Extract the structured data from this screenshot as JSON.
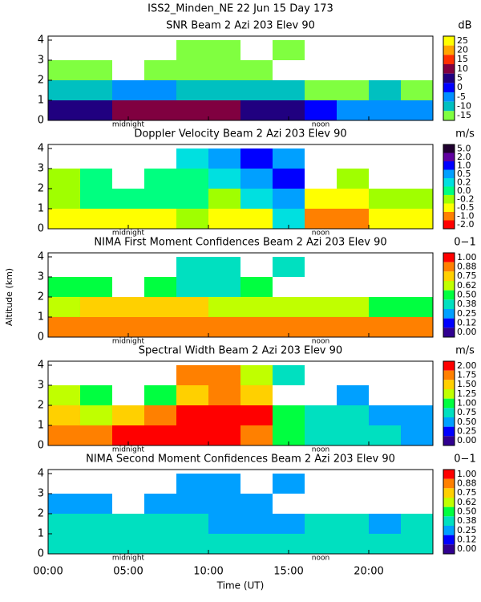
{
  "page_title": "ISS2_Minden_NE  22 Jun 15 Day 173",
  "y_label": "Altitude (km)",
  "chart_data": [
    {
      "type": "heatmap",
      "title": "SNR Beam 2 Azi 203 Elev 90",
      "unit": "dB",
      "levels": [
        25,
        20,
        15,
        10,
        5,
        0,
        -5,
        -10,
        -15
      ],
      "colors": [
        "#ffff00",
        "#ffa500",
        "#ff3000",
        "#800040",
        "#200080",
        "#0000ff",
        "#0090ff",
        "#00c0c0",
        "#80ff40"
      ],
      "x_bins": [
        0,
        2,
        4,
        6,
        8,
        10,
        12,
        14,
        16,
        18,
        20,
        22,
        24
      ],
      "y_bins": [
        0,
        1,
        2,
        3,
        4
      ],
      "z": [
        [
          5,
          8,
          10,
          10,
          10,
          10,
          8,
          5,
          0,
          -5,
          -5,
          -5
        ],
        [
          -10,
          -8,
          -5,
          -5,
          -8,
          -10,
          -10,
          -10,
          -12,
          -12,
          -10,
          -12
        ],
        [
          -12,
          -14,
          null,
          -14,
          -12,
          -13,
          -14,
          null,
          null,
          null,
          null,
          null
        ],
        [
          null,
          null,
          null,
          null,
          -14,
          -14,
          null,
          -14,
          null,
          null,
          null,
          null
        ]
      ],
      "xlim": [
        0,
        24
      ],
      "xticks": [
        0,
        5,
        10,
        15,
        20
      ],
      "ylim": [
        0,
        4.2
      ],
      "yticks": [
        0,
        1,
        2,
        3,
        4
      ],
      "annotations": [
        {
          "text": "midnight",
          "x": 5
        },
        {
          "text": "noon",
          "x": 17
        }
      ]
    },
    {
      "type": "heatmap",
      "title": "Doppler Velocity Beam 2 Azi 203 Elev 90",
      "unit": "m/s",
      "levels": [
        {
          "value": 5,
          "label": "5.0"
        },
        {
          "value": 2,
          "label": "2.0"
        },
        {
          "value": 1,
          "label": "1.0"
        },
        0.5,
        0.2,
        {
          "value": 0,
          "label": "0.0"
        },
        -0.2,
        -0.5,
        {
          "value": -1,
          "label": "-1.0"
        },
        {
          "value": -2,
          "label": "-2.0"
        }
      ],
      "colors": [
        "#200030",
        "#6000a0",
        "#0000ff",
        "#00a0ff",
        "#00e0e0",
        "#00ff80",
        "#a0ff00",
        "#ffff00",
        "#ff8000",
        "#ff0000"
      ],
      "x_bins": [
        0,
        2,
        4,
        6,
        8,
        10,
        12,
        14,
        16,
        18,
        20,
        22,
        24
      ],
      "y_bins": [
        0,
        1,
        2,
        3,
        4
      ],
      "z": [
        [
          -0.5,
          -0.3,
          -0.5,
          -0.3,
          -0.2,
          -0.3,
          -0.5,
          0.3,
          -1.0,
          -1.0,
          -0.5,
          -0.5
        ],
        [
          -0.2,
          0.0,
          0.0,
          0.0,
          0.0,
          -0.2,
          0.2,
          0.5,
          -0.5,
          -0.5,
          -0.2,
          -0.2
        ],
        [
          -0.2,
          0.0,
          null,
          0.0,
          0.0,
          0.2,
          0.5,
          1.0,
          null,
          -0.2,
          null,
          null
        ],
        [
          null,
          null,
          null,
          null,
          0.2,
          0.5,
          1.0,
          0.5,
          null,
          null,
          null,
          null
        ]
      ],
      "xlim": [
        0,
        24
      ],
      "xticks": [
        0,
        5,
        10,
        15,
        20
      ],
      "ylim": [
        0,
        4.2
      ],
      "yticks": [
        0,
        1,
        2,
        3,
        4
      ],
      "annotations": [
        {
          "text": "midnight",
          "x": 5
        },
        {
          "text": "noon",
          "x": 17
        }
      ]
    },
    {
      "type": "heatmap",
      "title": "NIMA First Moment Confidences Beam 2 Azi 203 Elev 90",
      "unit": "0−1",
      "levels": [
        {
          "value": 1,
          "label": "1.00"
        },
        0.88,
        0.75,
        0.62,
        {
          "value": 0.5,
          "label": "0.50"
        },
        0.38,
        0.25,
        0.12,
        {
          "value": 0,
          "label": "0.00"
        }
      ],
      "colors": [
        "#ff0000",
        "#ff8000",
        "#ffd000",
        "#c0ff00",
        "#00ff40",
        "#00e0c0",
        "#00a0ff",
        "#0000ff",
        "#300090"
      ],
      "x_bins": [
        0,
        2,
        4,
        6,
        8,
        10,
        12,
        14,
        16,
        18,
        20,
        22,
        24
      ],
      "y_bins": [
        0,
        1,
        2,
        3,
        4
      ],
      "z": [
        [
          0.9,
          0.95,
          0.95,
          0.95,
          0.9,
          0.9,
          0.95,
          0.9,
          0.95,
          0.9,
          0.9,
          0.9
        ],
        [
          0.7,
          0.8,
          0.8,
          0.8,
          0.8,
          0.7,
          0.7,
          0.7,
          0.7,
          0.7,
          0.6,
          0.6
        ],
        [
          0.5,
          0.5,
          null,
          0.5,
          0.45,
          0.45,
          0.5,
          null,
          null,
          null,
          null,
          null
        ],
        [
          null,
          null,
          null,
          null,
          0.45,
          0.45,
          null,
          0.4,
          null,
          null,
          null,
          null
        ]
      ],
      "xlim": [
        0,
        24
      ],
      "xticks": [
        0,
        5,
        10,
        15,
        20
      ],
      "ylim": [
        0,
        4.2
      ],
      "yticks": [
        0,
        1,
        2,
        3,
        4
      ],
      "annotations": [
        {
          "text": "midnight",
          "x": 5
        },
        {
          "text": "noon",
          "x": 17
        }
      ]
    },
    {
      "type": "heatmap",
      "title": "Spectral Width Beam 2 Azi 203 Elev 90",
      "unit": "m/s",
      "levels": [
        {
          "value": 2,
          "label": "2.00"
        },
        1.75,
        {
          "value": 1.5,
          "label": "1.50"
        },
        1.25,
        {
          "value": 1,
          "label": "1.00"
        },
        0.75,
        {
          "value": 0.5,
          "label": "0.50"
        },
        0.25,
        {
          "value": 0,
          "label": "0.00"
        }
      ],
      "colors": [
        "#ff0000",
        "#ff8000",
        "#ffd000",
        "#c0ff00",
        "#00ff40",
        "#00e0c0",
        "#00a0ff",
        "#0000ff",
        "#300090"
      ],
      "x_bins": [
        0,
        2,
        4,
        6,
        8,
        10,
        12,
        14,
        16,
        18,
        20,
        22,
        24
      ],
      "y_bins": [
        0,
        1,
        2,
        3,
        4
      ],
      "z": [
        [
          1.8,
          1.9,
          2.0,
          2.0,
          2.0,
          2.0,
          1.9,
          1.0,
          0.9,
          0.8,
          0.8,
          0.7
        ],
        [
          1.5,
          1.3,
          1.6,
          1.8,
          2.0,
          2.0,
          2.0,
          1.0,
          0.8,
          0.8,
          0.6,
          0.6
        ],
        [
          1.3,
          1.0,
          null,
          1.0,
          1.6,
          1.9,
          1.5,
          null,
          null,
          0.6,
          null,
          null
        ],
        [
          null,
          null,
          null,
          null,
          1.8,
          1.8,
          1.3,
          0.8,
          null,
          null,
          null,
          null
        ]
      ],
      "xlim": [
        0,
        24
      ],
      "xticks": [
        0,
        5,
        10,
        15,
        20
      ],
      "ylim": [
        0,
        4.2
      ],
      "yticks": [
        0,
        1,
        2,
        3,
        4
      ],
      "annotations": [
        {
          "text": "midnight",
          "x": 5
        },
        {
          "text": "noon",
          "x": 17
        }
      ]
    },
    {
      "type": "heatmap",
      "title": "NIMA Second Moment Confidences Beam 2 Azi 203 Elev 90",
      "unit": "0−1",
      "levels": [
        {
          "value": 1,
          "label": "1.00"
        },
        0.88,
        0.75,
        0.62,
        {
          "value": 0.5,
          "label": "0.50"
        },
        0.38,
        0.25,
        0.12,
        {
          "value": 0,
          "label": "0.00"
        }
      ],
      "colors": [
        "#ff0000",
        "#ff8000",
        "#ffd000",
        "#c0ff00",
        "#00ff40",
        "#00e0c0",
        "#00a0ff",
        "#0000ff",
        "#300090"
      ],
      "x_bins": [
        0,
        2,
        4,
        6,
        8,
        10,
        12,
        14,
        16,
        18,
        20,
        22,
        24
      ],
      "y_bins": [
        0,
        1,
        2,
        3,
        4
      ],
      "z": [
        [
          0.45,
          0.45,
          0.45,
          0.4,
          0.4,
          0.4,
          0.4,
          0.4,
          0.45,
          0.45,
          0.4,
          0.45
        ],
        [
          0.4,
          0.4,
          0.4,
          0.4,
          0.4,
          0.35,
          0.35,
          0.35,
          0.4,
          0.4,
          0.35,
          0.4
        ],
        [
          0.35,
          0.3,
          null,
          0.3,
          0.3,
          0.3,
          0.3,
          null,
          null,
          null,
          null,
          null
        ],
        [
          null,
          null,
          null,
          null,
          0.3,
          0.3,
          null,
          0.25,
          null,
          null,
          null,
          null
        ]
      ],
      "xlim": [
        0,
        24
      ],
      "xticks": [
        {
          "value": 0,
          "label": "00:00"
        },
        {
          "value": 5,
          "label": "05:00"
        },
        {
          "value": 10,
          "label": "10:00"
        },
        {
          "value": 15,
          "label": "15:00"
        },
        {
          "value": 20,
          "label": "20:00"
        }
      ],
      "xlabel": "Time (UT)",
      "ylim": [
        0,
        4.2
      ],
      "yticks": [
        0,
        1,
        2,
        3,
        4
      ],
      "annotations": [
        {
          "text": "midnight",
          "x": 5
        },
        {
          "text": "noon",
          "x": 17
        }
      ]
    }
  ]
}
